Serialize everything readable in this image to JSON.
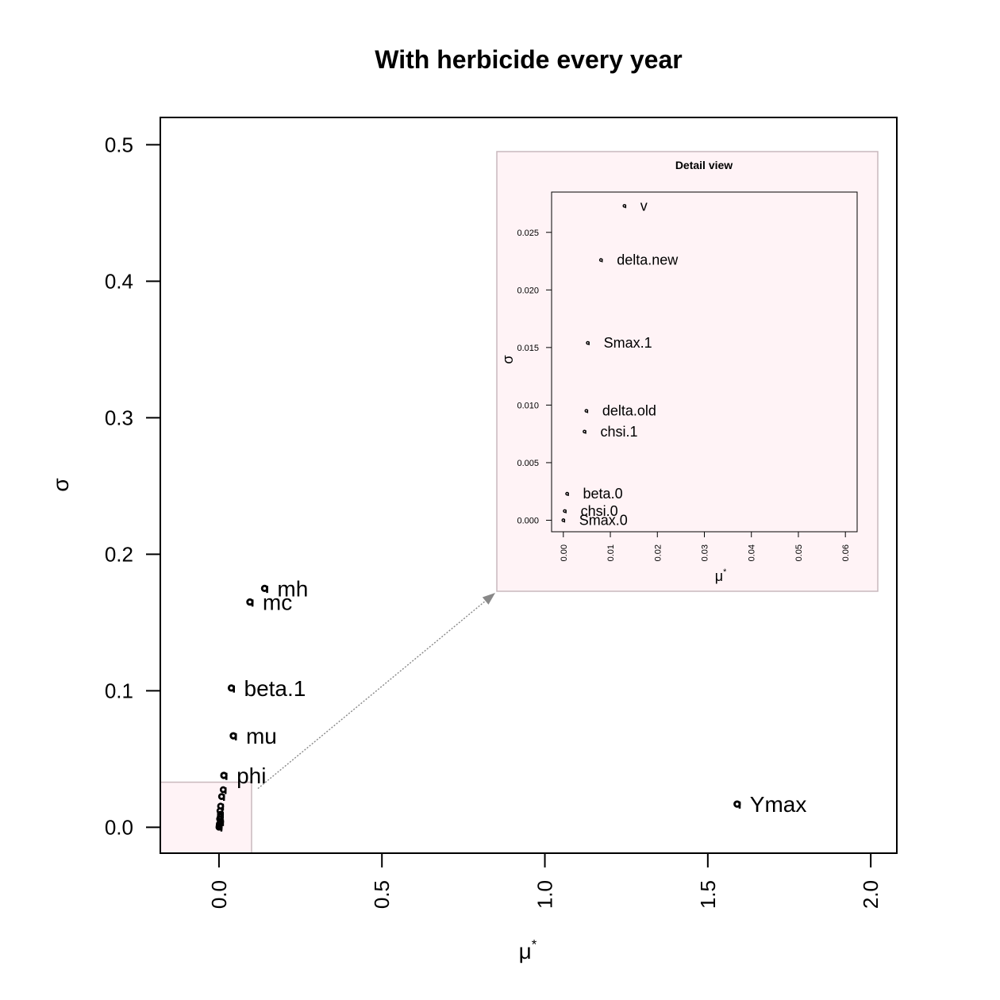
{
  "chart_data": {
    "type": "scatter",
    "title": "With herbicide every year",
    "xlabel": "μ*",
    "ylabel": "σ",
    "xlim": [
      -0.18,
      2.08
    ],
    "ylim": [
      -0.019,
      0.52
    ],
    "xticks": [
      0.0,
      0.5,
      1.0,
      1.5,
      2.0
    ],
    "xtick_labels": [
      "0.0",
      "0.5",
      "1.0",
      "1.5",
      "2.0"
    ],
    "yticks": [
      0.0,
      0.1,
      0.2,
      0.3,
      0.4,
      0.5
    ],
    "ytick_labels": [
      "0.0",
      "0.1",
      "0.2",
      "0.3",
      "0.4",
      "0.5"
    ],
    "grid": false,
    "points": [
      {
        "label": "mh",
        "x": 0.14,
        "y": 0.175
      },
      {
        "label": "mc",
        "x": 0.095,
        "y": 0.165
      },
      {
        "label": "beta.1",
        "x": 0.038,
        "y": 0.102
      },
      {
        "label": "mu",
        "x": 0.044,
        "y": 0.067
      },
      {
        "label": "phi",
        "x": 0.015,
        "y": 0.038
      },
      {
        "label": "Ymax",
        "x": 1.59,
        "y": 0.017
      }
    ],
    "cluster_points": [
      {
        "x": 0.013,
        "y": 0.0275
      },
      {
        "x": 0.008,
        "y": 0.0225
      },
      {
        "x": 0.005,
        "y": 0.0155
      },
      {
        "x": 0.0045,
        "y": 0.0095
      },
      {
        "x": 0.004,
        "y": 0.0077
      },
      {
        "x": 0.001,
        "y": 0.0023
      },
      {
        "x": 0.0005,
        "y": 0.0008
      },
      {
        "x": 0.0,
        "y": 0.0
      },
      {
        "x": 0.005,
        "y": 0.004
      },
      {
        "x": 0.003,
        "y": 0.012
      },
      {
        "x": 0.002,
        "y": 0.006
      }
    ],
    "zoom_region": {
      "xlim": [
        -0.18,
        0.1
      ],
      "ylim": [
        -0.019,
        0.033
      ]
    },
    "inset": {
      "title": "Detail view",
      "xlabel": "μ*",
      "ylabel": "σ",
      "xlim": [
        -0.0025,
        0.0625
      ],
      "ylim": [
        -0.001,
        0.0285
      ],
      "xticks": [
        0.0,
        0.01,
        0.02,
        0.03,
        0.04,
        0.05,
        0.06
      ],
      "xtick_labels": [
        "0.00",
        "0.01",
        "0.02",
        "0.03",
        "0.04",
        "0.05",
        "0.06"
      ],
      "yticks": [
        0.0,
        0.005,
        0.01,
        0.015,
        0.02,
        0.025
      ],
      "ytick_labels": [
        "0.000",
        "0.005",
        "0.010",
        "0.015",
        "0.020",
        "0.025"
      ],
      "points": [
        {
          "label": "v",
          "x": 0.013,
          "y": 0.0273
        },
        {
          "label": "delta.new",
          "x": 0.008,
          "y": 0.0226
        },
        {
          "label": "Smax.1",
          "x": 0.0052,
          "y": 0.0154
        },
        {
          "label": "delta.old",
          "x": 0.0049,
          "y": 0.0095
        },
        {
          "label": "chsi.1",
          "x": 0.0045,
          "y": 0.0077
        },
        {
          "label": "beta.0",
          "x": 0.0008,
          "y": 0.0023
        },
        {
          "label": "chsi.0",
          "x": 0.0003,
          "y": 0.0008
        },
        {
          "label": "Smax.0",
          "x": 0.0,
          "y": 0.0
        }
      ]
    },
    "colors": {
      "inset_fill": "#fff3f6",
      "inset_border": "#c9b8bd",
      "arrow": "#888888",
      "points": "#000000"
    }
  }
}
